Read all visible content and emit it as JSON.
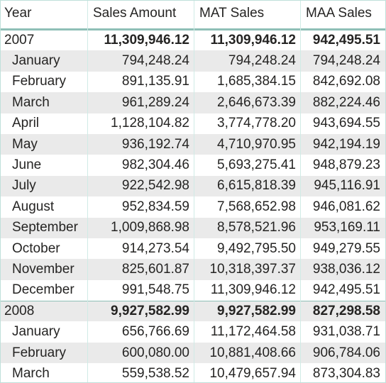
{
  "table": {
    "headers": [
      "Year",
      "Sales Amount",
      "MAT Sales",
      "MAA Sales"
    ],
    "rows": [
      {
        "type": "year",
        "label": "2007",
        "sales": "11,309,946.12",
        "mat": "11,309,946.12",
        "maa": "942,495.51"
      },
      {
        "type": "month",
        "label": "January",
        "sales": "794,248.24",
        "mat": "794,248.24",
        "maa": "794,248.24"
      },
      {
        "type": "month",
        "label": "February",
        "sales": "891,135.91",
        "mat": "1,685,384.15",
        "maa": "842,692.08"
      },
      {
        "type": "month",
        "label": "March",
        "sales": "961,289.24",
        "mat": "2,646,673.39",
        "maa": "882,224.46"
      },
      {
        "type": "month",
        "label": "April",
        "sales": "1,128,104.82",
        "mat": "3,774,778.20",
        "maa": "943,694.55"
      },
      {
        "type": "month",
        "label": "May",
        "sales": "936,192.74",
        "mat": "4,710,970.95",
        "maa": "942,194.19"
      },
      {
        "type": "month",
        "label": "June",
        "sales": "982,304.46",
        "mat": "5,693,275.41",
        "maa": "948,879.23"
      },
      {
        "type": "month",
        "label": "July",
        "sales": "922,542.98",
        "mat": "6,615,818.39",
        "maa": "945,116.91"
      },
      {
        "type": "month",
        "label": "August",
        "sales": "952,834.59",
        "mat": "7,568,652.98",
        "maa": "946,081.62"
      },
      {
        "type": "month",
        "label": "September",
        "sales": "1,009,868.98",
        "mat": "8,578,521.96",
        "maa": "953,169.11"
      },
      {
        "type": "month",
        "label": "October",
        "sales": "914,273.54",
        "mat": "9,492,795.50",
        "maa": "949,279.55"
      },
      {
        "type": "month",
        "label": "November",
        "sales": "825,601.87",
        "mat": "10,318,397.37",
        "maa": "938,036.12"
      },
      {
        "type": "month",
        "label": "December",
        "sales": "991,548.75",
        "mat": "11,309,946.12",
        "maa": "942,495.51"
      },
      {
        "type": "year",
        "label": "2008",
        "sales": "9,927,582.99",
        "mat": "9,927,582.99",
        "maa": "827,298.58"
      },
      {
        "type": "month",
        "label": "January",
        "sales": "656,766.69",
        "mat": "11,172,464.58",
        "maa": "931,038.71"
      },
      {
        "type": "month",
        "label": "February",
        "sales": "600,080.00",
        "mat": "10,881,408.66",
        "maa": "906,784.06"
      },
      {
        "type": "month",
        "label": "March",
        "sales": "559,538.52",
        "mat": "10,479,657.94",
        "maa": "873,304.83"
      }
    ]
  },
  "colors": {
    "border": "#8fbfb7",
    "row_shade": "#eaeaea",
    "text": "#252423"
  }
}
